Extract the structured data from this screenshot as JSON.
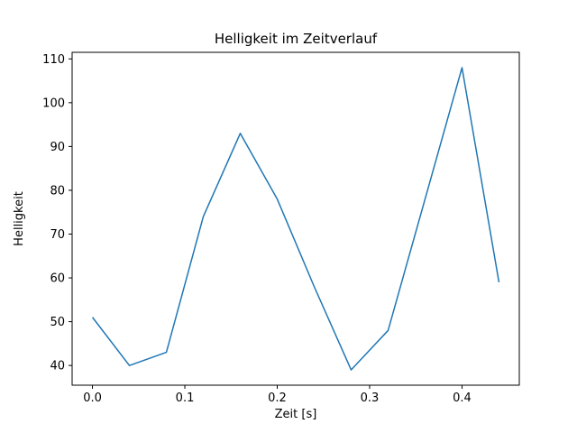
{
  "chart_data": {
    "type": "line",
    "title": "Helligkeit im Zeitverlauf",
    "xlabel": "Zeit [s]",
    "ylabel": "Helligkeit",
    "x": [
      0.0,
      0.04,
      0.08,
      0.12,
      0.16,
      0.2,
      0.24,
      0.28,
      0.32,
      0.36,
      0.4,
      0.44
    ],
    "y": [
      51,
      40,
      43,
      74,
      93,
      78,
      58,
      39,
      48,
      78,
      108,
      59
    ],
    "xlim": [
      -0.022,
      0.462
    ],
    "ylim": [
      35.5,
      111.5
    ],
    "xticks": [
      0.0,
      0.1,
      0.2,
      0.3,
      0.4
    ],
    "yticks": [
      40,
      50,
      60,
      70,
      80,
      90,
      100,
      110
    ],
    "x_tick_decimals": 1,
    "line_color": "#1f77b4",
    "axis_color": "#000000",
    "background_color": "#ffffff",
    "grid": false,
    "legend": null
  }
}
